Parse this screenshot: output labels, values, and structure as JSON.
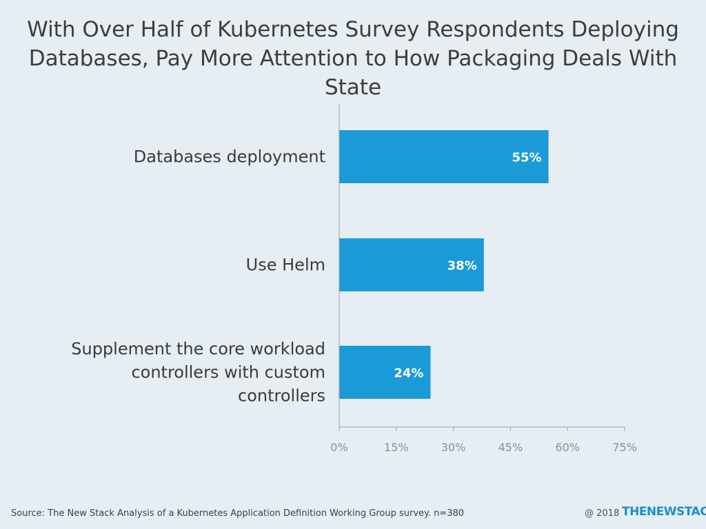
{
  "chart_data": {
    "type": "bar",
    "orientation": "horizontal",
    "title": "With Over Half of Kubernetes Survey Respondents Deploying Databases, Pay More Attention to How Packaging Deals With State",
    "categories": [
      "Databases deployment",
      "Use Helm",
      "Supplement the core workload controllers with custom controllers"
    ],
    "category_lines": [
      [
        "Databases deployment"
      ],
      [
        "Use Helm"
      ],
      [
        "Supplement the core workload",
        "controllers with custom",
        "controllers"
      ]
    ],
    "values": [
      55,
      38,
      24
    ],
    "value_labels": [
      "55%",
      "38%",
      "24%"
    ],
    "xlim": [
      0,
      75
    ],
    "xticks": [
      0,
      15,
      30,
      45,
      60,
      75
    ],
    "xtick_labels": [
      "0%",
      "15%",
      "30%",
      "45%",
      "60%",
      "75%"
    ],
    "xlabel": "",
    "ylabel": "",
    "grid": false,
    "legend": "none",
    "bar_color": "#1a9bd7"
  },
  "footer": {
    "source": "Source: The New Stack Analysis of a Kubernetes Application Definition Working Group survey. n=380",
    "copyright": "@ 2018",
    "brand": "THENEWSTACK"
  }
}
